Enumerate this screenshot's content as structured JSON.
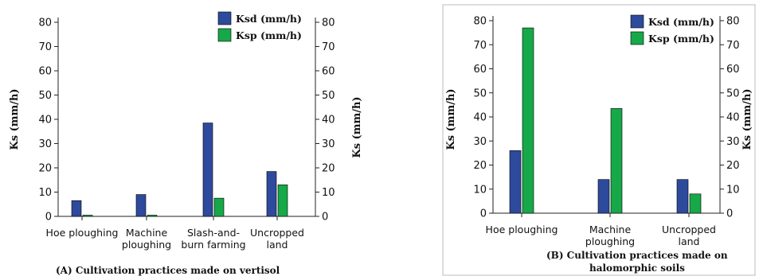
{
  "colors": {
    "ksd": "#2e4a9c",
    "ksp": "#17a849",
    "axis": "#222222",
    "panel_border": "#bbbbbb"
  },
  "chart_data": [
    {
      "id": "A",
      "type": "bar",
      "title": "(A)  Cultivation practices made on vertisol",
      "ylabel_left": "Ks (mm/h)",
      "ylabel_right": "Ks (mm/h)",
      "ylim": [
        0,
        80
      ],
      "yticks": [
        0,
        10,
        20,
        30,
        40,
        50,
        60,
        70,
        80
      ],
      "categories": [
        [
          "Hoe ploughing"
        ],
        [
          "Machine",
          "ploughing"
        ],
        [
          "Slash-and-",
          "burn farming"
        ],
        [
          "Uncropped",
          "land"
        ]
      ],
      "series": [
        {
          "name": "Ksd (mm/h)",
          "values": [
            6.5,
            9,
            38.5,
            18.5
          ]
        },
        {
          "name": "Ksp (mm/h)",
          "values": [
            0.5,
            0.5,
            7.5,
            13
          ]
        }
      ],
      "legend_position": "top-right",
      "grid": false
    },
    {
      "id": "B",
      "type": "bar",
      "title": "(B)  Cultivation practices made on halomorphic soils",
      "ylabel_left": "Ks (mm/h)",
      "ylabel_right": "Ks (mm/h)",
      "ylim": [
        0,
        80
      ],
      "yticks": [
        0,
        10,
        20,
        30,
        40,
        50,
        60,
        70,
        80
      ],
      "categories": [
        [
          "Hoe ploughing"
        ],
        [
          "Machine",
          "ploughing"
        ],
        [
          "Uncropped",
          "land"
        ]
      ],
      "series": [
        {
          "name": "Ksd (mm/h)",
          "values": [
            26,
            14,
            14
          ]
        },
        {
          "name": "Ksp (mm/h)",
          "values": [
            77,
            43.5,
            8
          ]
        }
      ],
      "legend_position": "top-right",
      "grid": false
    }
  ]
}
